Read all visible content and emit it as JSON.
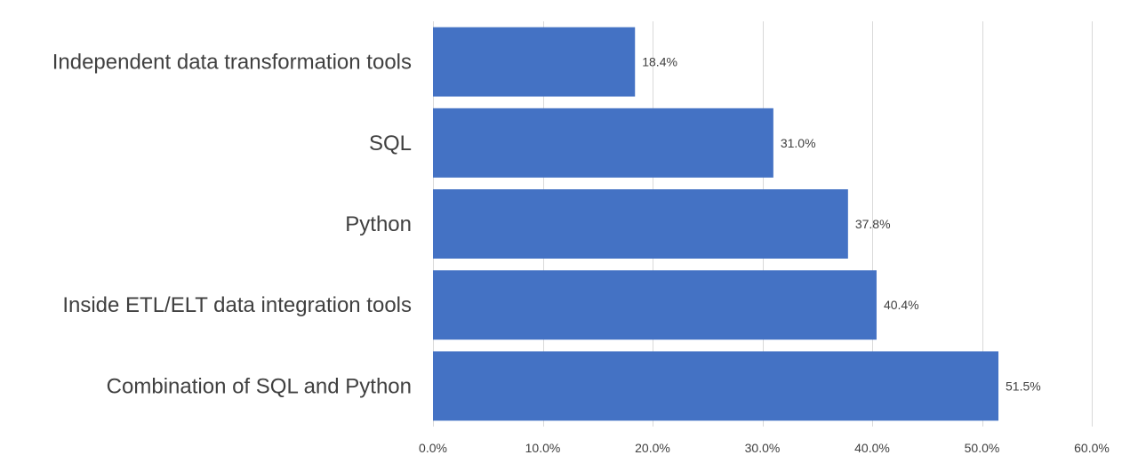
{
  "chart_data": {
    "type": "bar",
    "orientation": "horizontal",
    "categories": [
      "Independent data transformation tools",
      "SQL",
      "Python",
      "Inside ETL/ELT data integration tools",
      "Combination of SQL and Python"
    ],
    "values": [
      18.4,
      31.0,
      37.8,
      40.4,
      51.5
    ],
    "data_labels": [
      "18.4%",
      "31.0%",
      "37.8%",
      "40.4%",
      "51.5%"
    ],
    "xlim": [
      0,
      60
    ],
    "x_ticks": [
      0,
      10,
      20,
      30,
      40,
      50,
      60
    ],
    "x_tick_labels": [
      "0.0%",
      "10.0%",
      "20.0%",
      "30.0%",
      "40.0%",
      "50.0%",
      "60.0%"
    ],
    "title": "",
    "xlabel": "",
    "ylabel": "",
    "grid": true,
    "legend": "none",
    "bar_color": "#4472c4",
    "grid_color": "#d9d9d9",
    "text_color": "#404040"
  }
}
